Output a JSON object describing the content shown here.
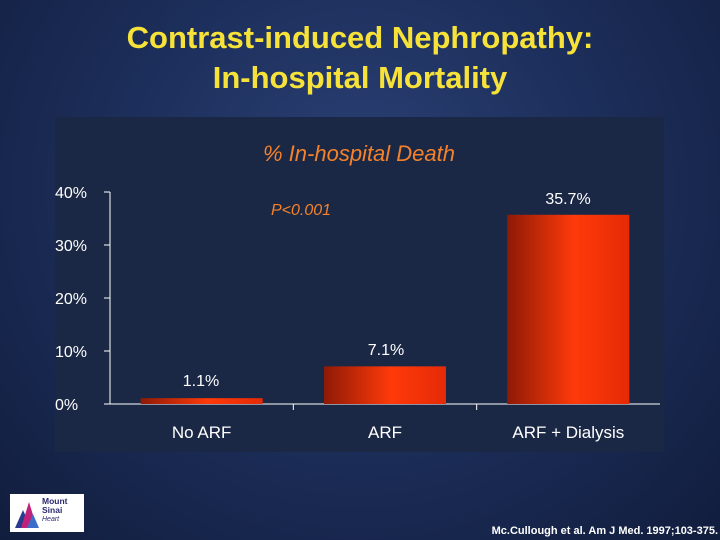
{
  "slide": {
    "title_line1": "Contrast-induced Nephropathy:",
    "title_line2": "In-hospital Mortality",
    "citation": "Mc.Cullough et al. Am J Med. 1997;103-375."
  },
  "logo": {
    "line1": "Mount",
    "line2": "Sinai",
    "line3": "Heart"
  },
  "colors": {
    "title": "#f7e23a",
    "panel_bg": "#1b2845",
    "bar_dark": "#8e1a06",
    "bar_bright": "#ff3a0a",
    "annotation": "#f5822a",
    "axis": "#ffffff"
  },
  "chart_data": {
    "type": "bar",
    "title": "% In-hospital Death",
    "categories": [
      "No ARF",
      "ARF",
      "ARF + Dialysis"
    ],
    "values": [
      1.1,
      7.1,
      35.7
    ],
    "data_labels": [
      "1.1%",
      "7.1%",
      "35.7%"
    ],
    "yticks": [
      0,
      10,
      20,
      30,
      40
    ],
    "ytick_labels": [
      "0%",
      "10%",
      "20%",
      "30%",
      "40%"
    ],
    "ylim": [
      0,
      40
    ],
    "annotation": "P<0.001",
    "xlabel": "",
    "ylabel": "",
    "grid": false,
    "legend": "none"
  }
}
